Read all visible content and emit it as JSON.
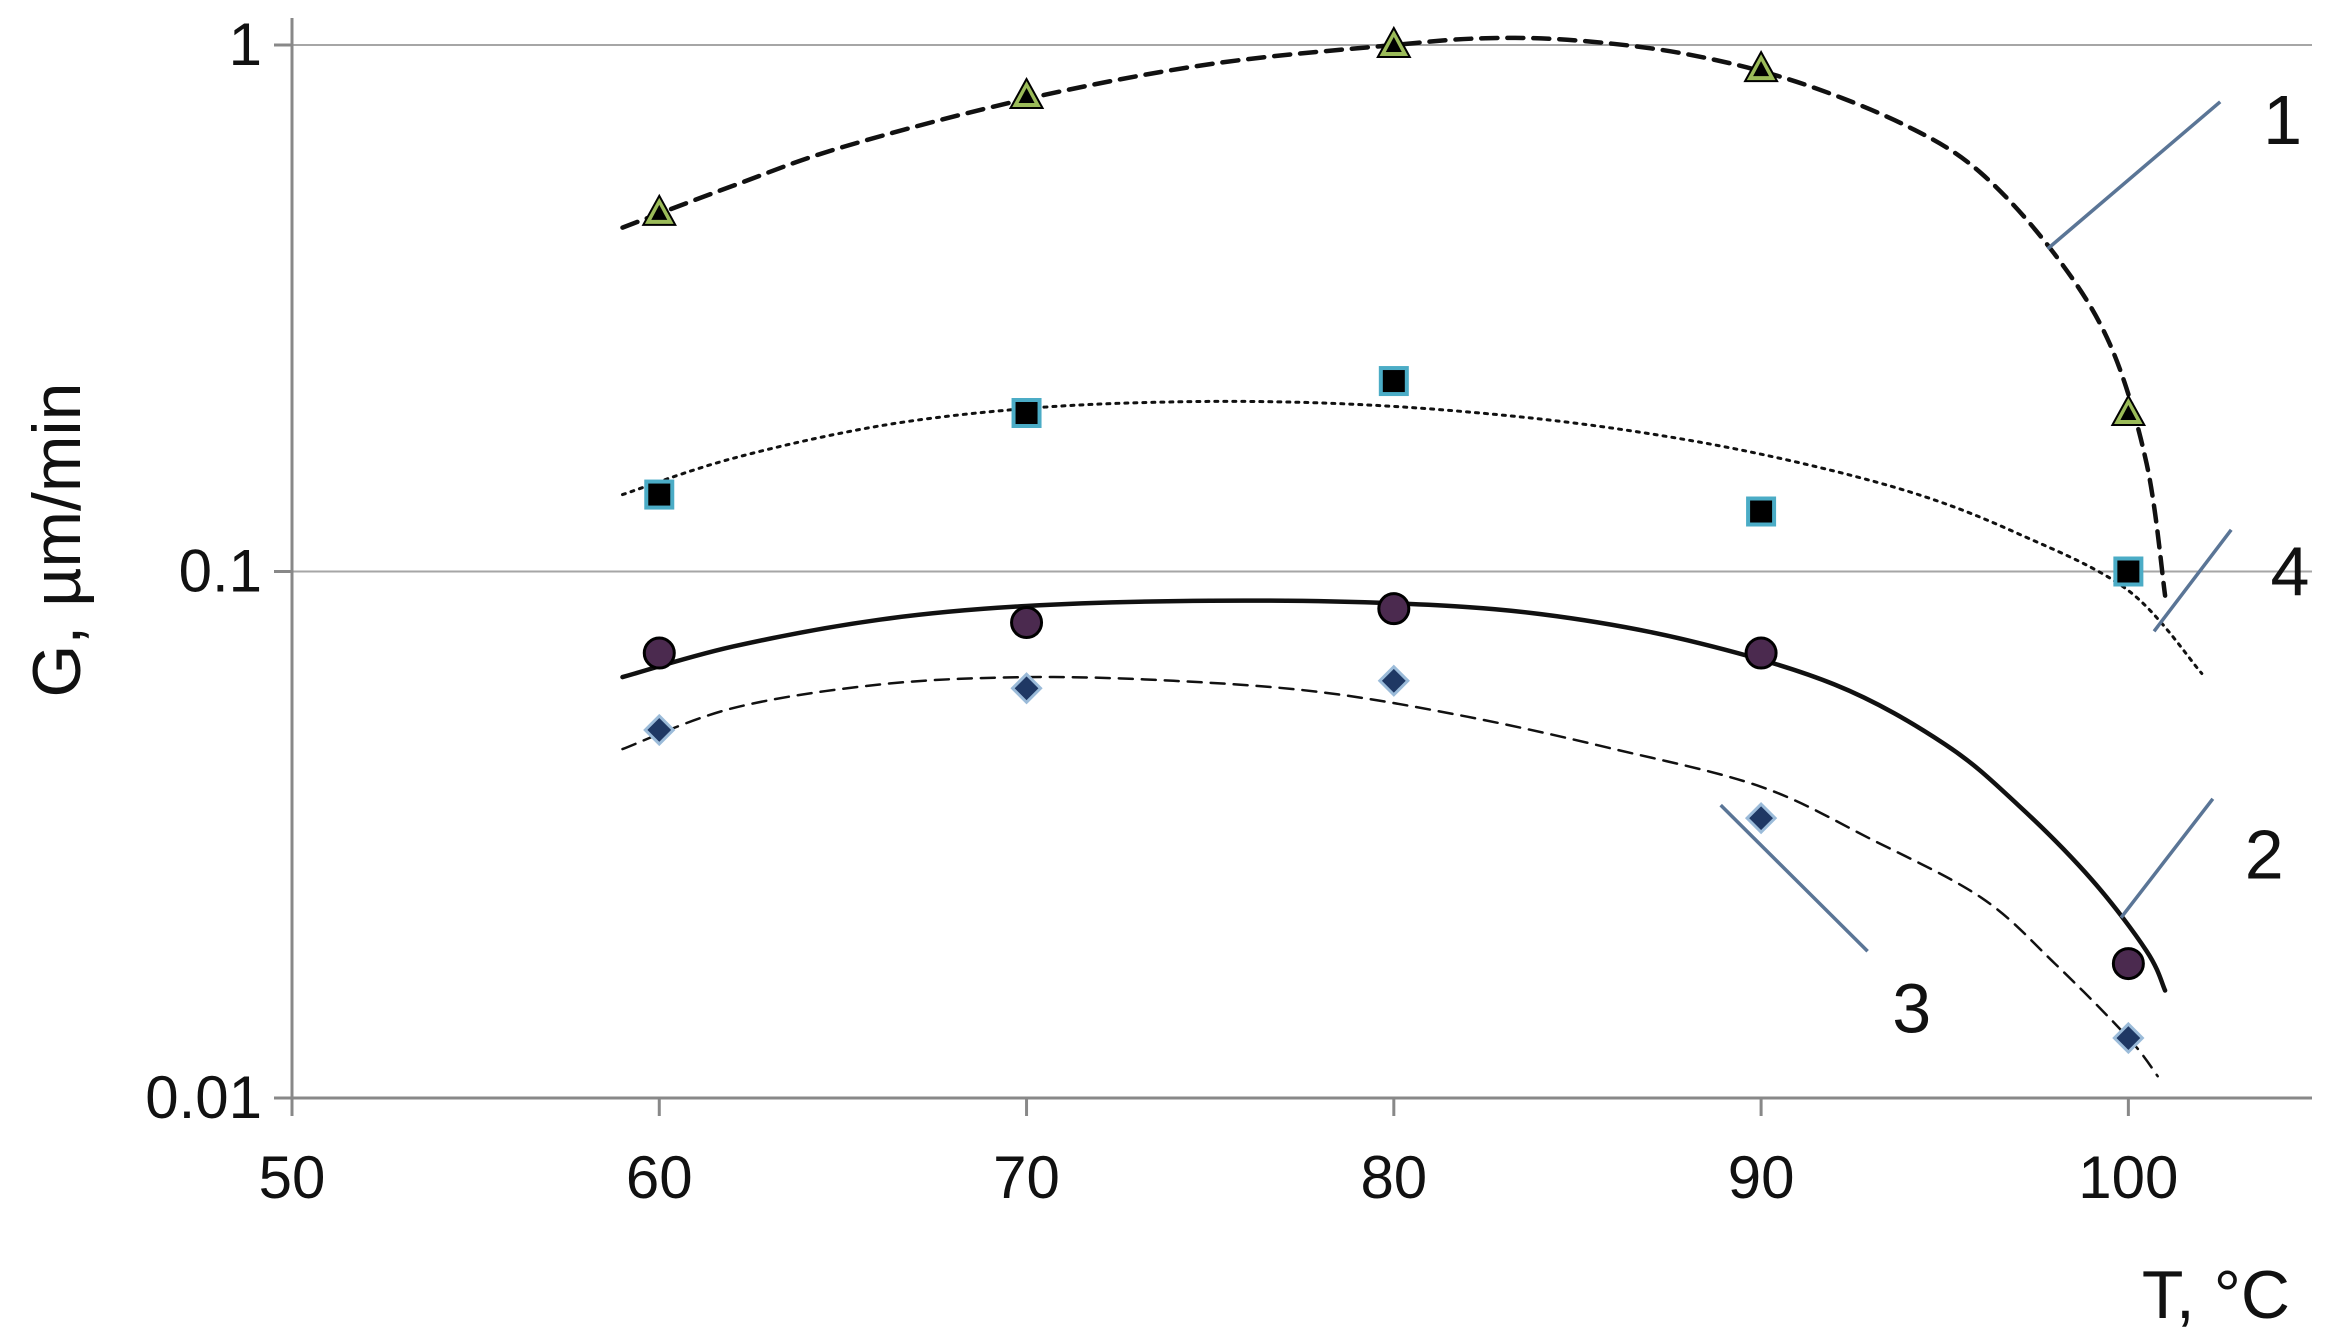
{
  "chart_data": {
    "type": "scatter",
    "title": "",
    "xlabel": "T, °C",
    "ylabel": "G, µm/min",
    "xlim": [
      50,
      105
    ],
    "ylim": [
      0.01,
      1
    ],
    "y_scale": "log",
    "x_ticks": [
      50,
      60,
      70,
      80,
      90,
      100
    ],
    "y_ticks": [
      {
        "value": 0.01,
        "label": "0.01"
      },
      {
        "value": 0.1,
        "label": "0.1"
      },
      {
        "value": 1,
        "label": "1"
      }
    ],
    "grid": "horizontal",
    "legend": "none",
    "series": [
      {
        "label": "1",
        "marker": "triangle",
        "marker_fill": "#9bbb59",
        "marker_edge": "#000000",
        "points": [
          [
            60,
            0.48
          ],
          [
            70,
            0.8
          ],
          [
            80,
            1.0
          ],
          [
            90,
            0.9
          ],
          [
            100,
            0.2
          ]
        ],
        "fit": [
          [
            59,
            0.45
          ],
          [
            62,
            0.54
          ],
          [
            65,
            0.64
          ],
          [
            70,
            0.79
          ],
          [
            75,
            0.92
          ],
          [
            80,
            1.0
          ],
          [
            82.5,
            1.03
          ],
          [
            85,
            1.02
          ],
          [
            88,
            0.96
          ],
          [
            91,
            0.85
          ],
          [
            94,
            0.7
          ],
          [
            96,
            0.57
          ],
          [
            98,
            0.4
          ],
          [
            99.5,
            0.27
          ],
          [
            100.5,
            0.16
          ],
          [
            101,
            0.09
          ]
        ],
        "line_style": "dashed",
        "label_text_pos": [
          104.2,
          0.72
        ],
        "leader_from": [
          102.5,
          0.78
        ],
        "leader_to": [
          97.8,
          0.41
        ]
      },
      {
        "label": "2",
        "marker": "circle",
        "marker_fill": "#4b2a4f",
        "marker_edge": "#000000",
        "points": [
          [
            60,
            0.07
          ],
          [
            70,
            0.08
          ],
          [
            80,
            0.085
          ],
          [
            90,
            0.07
          ],
          [
            100,
            0.018
          ]
        ],
        "fit": [
          [
            59,
            0.063
          ],
          [
            62,
            0.072
          ],
          [
            66,
            0.081
          ],
          [
            70,
            0.086
          ],
          [
            75,
            0.088
          ],
          [
            80,
            0.087
          ],
          [
            84,
            0.083
          ],
          [
            88,
            0.074
          ],
          [
            92,
            0.061
          ],
          [
            95,
            0.047
          ],
          [
            97,
            0.036
          ],
          [
            99,
            0.026
          ],
          [
            100.5,
            0.019
          ],
          [
            101,
            0.016
          ]
        ],
        "line_style": "solid",
        "label_text_pos": [
          103.7,
          0.029
        ],
        "leader_from": [
          102.3,
          0.037
        ],
        "leader_to": [
          99.8,
          0.022
        ]
      },
      {
        "label": "3",
        "marker": "diamond",
        "marker_fill": "#1f3864",
        "marker_edge": "#9bbbd9",
        "points": [
          [
            60,
            0.05
          ],
          [
            70,
            0.06
          ],
          [
            80,
            0.062
          ],
          [
            90,
            0.034
          ],
          [
            100,
            0.013
          ]
        ],
        "fit": [
          [
            59,
            0.046
          ],
          [
            62,
            0.055
          ],
          [
            66,
            0.061
          ],
          [
            70,
            0.063
          ],
          [
            74,
            0.062
          ],
          [
            78,
            0.059
          ],
          [
            82,
            0.053
          ],
          [
            86,
            0.046
          ],
          [
            90,
            0.039
          ],
          [
            93,
            0.031
          ],
          [
            96,
            0.024
          ],
          [
            98,
            0.018
          ],
          [
            100,
            0.013
          ],
          [
            100.8,
            0.011
          ]
        ],
        "line_style": "dashed-thin",
        "label_text_pos": [
          94.1,
          0.0148
        ],
        "leader_from": [
          92.9,
          0.019
        ],
        "leader_to": [
          88.9,
          0.036
        ]
      },
      {
        "label": "4",
        "marker": "square",
        "marker_fill": "#000000",
        "marker_edge": "#4bacc6",
        "points": [
          [
            60,
            0.14
          ],
          [
            70,
            0.2
          ],
          [
            80,
            0.23
          ],
          [
            90,
            0.13
          ],
          [
            100,
            0.1
          ]
        ],
        "fit": [
          [
            59,
            0.14
          ],
          [
            62,
            0.164
          ],
          [
            66,
            0.189
          ],
          [
            70,
            0.204
          ],
          [
            74,
            0.21
          ],
          [
            78,
            0.209
          ],
          [
            82,
            0.201
          ],
          [
            86,
            0.187
          ],
          [
            90,
            0.167
          ],
          [
            94,
            0.142
          ],
          [
            97,
            0.118
          ],
          [
            100,
            0.092
          ],
          [
            102,
            0.064
          ]
        ],
        "line_style": "dotted",
        "label_text_pos": [
          104.4,
          0.1
        ],
        "leader_from": [
          102.8,
          0.12
        ],
        "leader_to": [
          100.7,
          0.077
        ]
      }
    ]
  }
}
